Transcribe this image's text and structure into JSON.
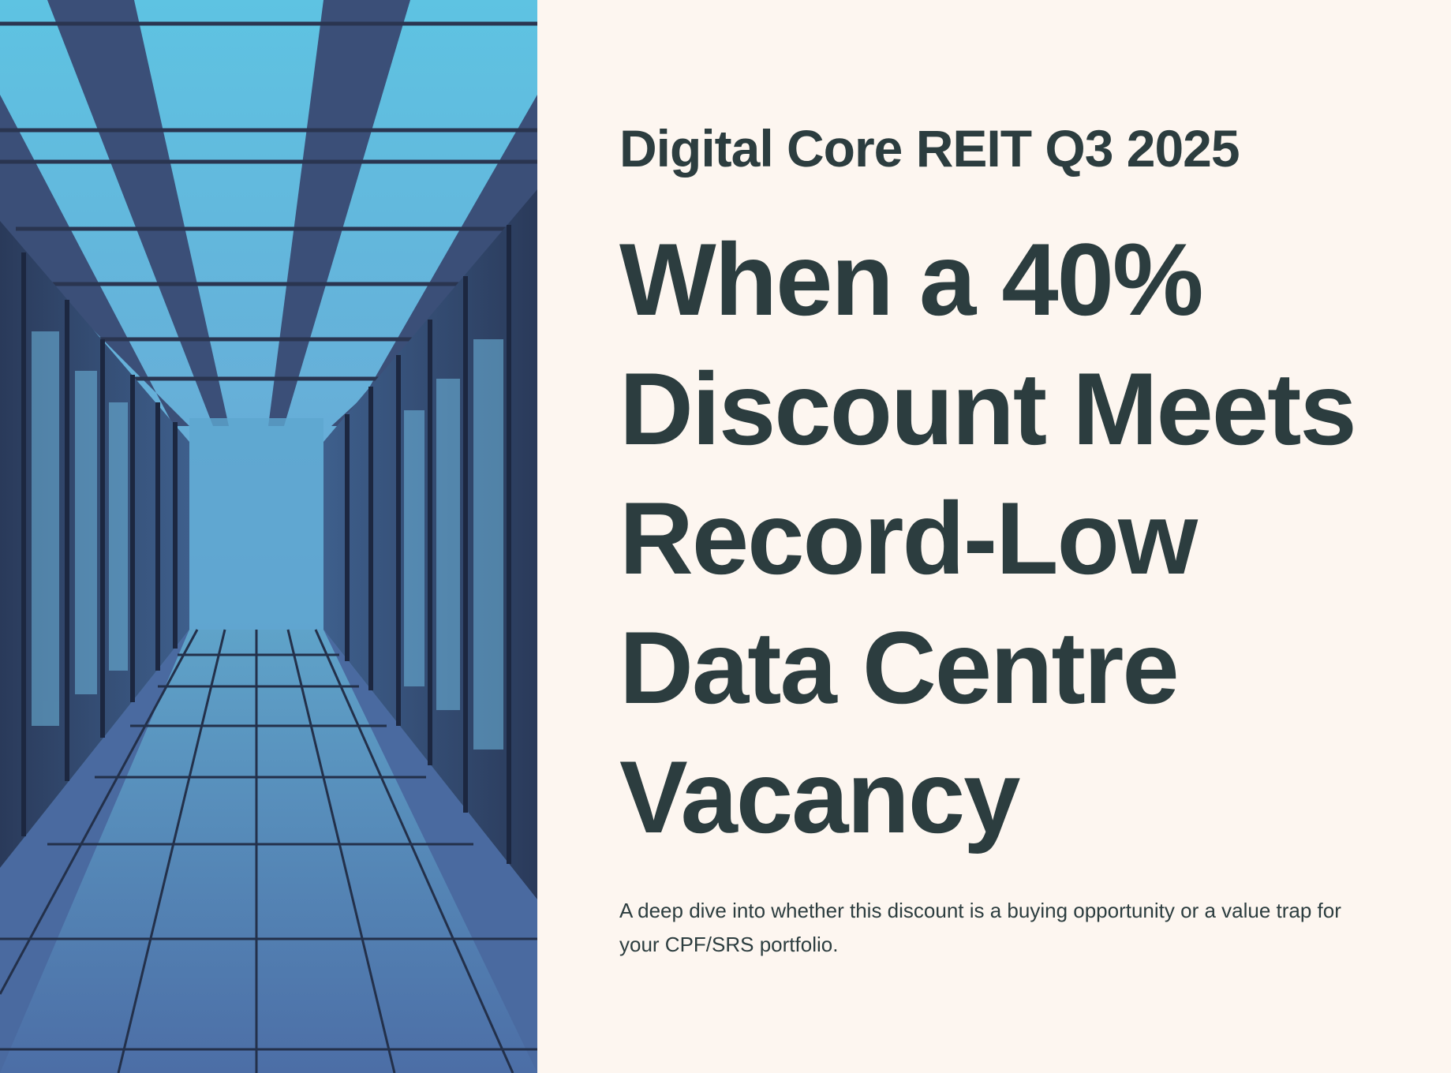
{
  "header": {
    "kicker": "Digital Core REIT Q3 2025",
    "title": "When a 40% Discount Meets Record-Low Data Centre Vacancy",
    "subtitle": "A deep dive into whether this discount is a buying opportunity or a value trap for your CPF/SRS portfolio."
  }
}
